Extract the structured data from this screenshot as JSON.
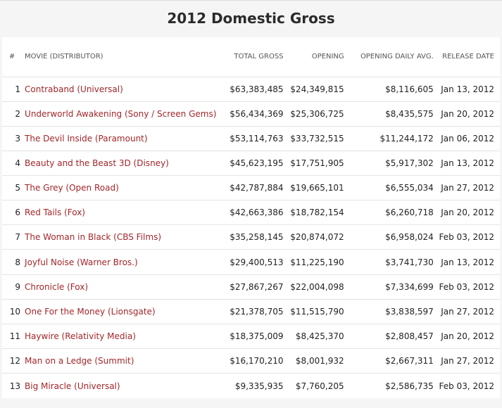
{
  "title": "2012 Domestic Gross",
  "columns": {
    "rank": "#",
    "movie": "MOVIE (DISTRIBUTOR)",
    "total": "TOTAL GROSS",
    "opening": "OPENING",
    "avg": "OPENING DAILY AVG.",
    "date": "RELEASE DATE"
  },
  "rows": [
    {
      "rank": "1",
      "movie": "Contraband (Universal)",
      "total": "$63,383,485",
      "opening": "$24,349,815",
      "avg": "$8,116,605",
      "date": "Jan 13, 2012"
    },
    {
      "rank": "2",
      "movie": "Underworld Awakening (Sony / Screen Gems)",
      "total": "$56,434,369",
      "opening": "$25,306,725",
      "avg": "$8,435,575",
      "date": "Jan 20, 2012"
    },
    {
      "rank": "3",
      "movie": "The Devil Inside (Paramount)",
      "total": "$53,114,763",
      "opening": "$33,732,515",
      "avg": "$11,244,172",
      "date": "Jan 06, 2012"
    },
    {
      "rank": "4",
      "movie": "Beauty and the Beast 3D (Disney)",
      "total": "$45,623,195",
      "opening": "$17,751,905",
      "avg": "$5,917,302",
      "date": "Jan 13, 2012"
    },
    {
      "rank": "5",
      "movie": "The Grey (Open Road)",
      "total": "$42,787,884",
      "opening": "$19,665,101",
      "avg": "$6,555,034",
      "date": "Jan 27, 2012"
    },
    {
      "rank": "6",
      "movie": "Red Tails (Fox)",
      "total": "$42,663,386",
      "opening": "$18,782,154",
      "avg": "$6,260,718",
      "date": "Jan 20, 2012"
    },
    {
      "rank": "7",
      "movie": "The Woman in Black (CBS Films)",
      "total": "$35,258,145",
      "opening": "$20,874,072",
      "avg": "$6,958,024",
      "date": "Feb 03, 2012"
    },
    {
      "rank": "8",
      "movie": "Joyful Noise (Warner Bros.)",
      "total": "$29,400,513",
      "opening": "$11,225,190",
      "avg": "$3,741,730",
      "date": "Jan 13, 2012"
    },
    {
      "rank": "9",
      "movie": "Chronicle (Fox)",
      "total": "$27,867,267",
      "opening": "$22,004,098",
      "avg": "$7,334,699",
      "date": "Feb 03, 2012"
    },
    {
      "rank": "10",
      "movie": "One For the Money (Lionsgate)",
      "total": "$21,378,705",
      "opening": "$11,515,790",
      "avg": "$3,838,597",
      "date": "Jan 27, 2012"
    },
    {
      "rank": "11",
      "movie": "Haywire (Relativity Media)",
      "total": "$18,375,009",
      "opening": "$8,425,370",
      "avg": "$2,808,457",
      "date": "Jan 20, 2012"
    },
    {
      "rank": "12",
      "movie": "Man on a Ledge (Summit)",
      "total": "$16,170,210",
      "opening": "$8,001,932",
      "avg": "$2,667,311",
      "date": "Jan 27, 2012"
    },
    {
      "rank": "13",
      "movie": "Big Miracle (Universal)",
      "total": "$9,335,935",
      "opening": "$7,760,205",
      "avg": "$2,586,735",
      "date": "Feb 03, 2012"
    }
  ],
  "colors": {
    "link": "#a3262a",
    "header_bg": "#f5f5f5",
    "row_bg": "#ffffff",
    "divider": "#e4e4e4"
  }
}
